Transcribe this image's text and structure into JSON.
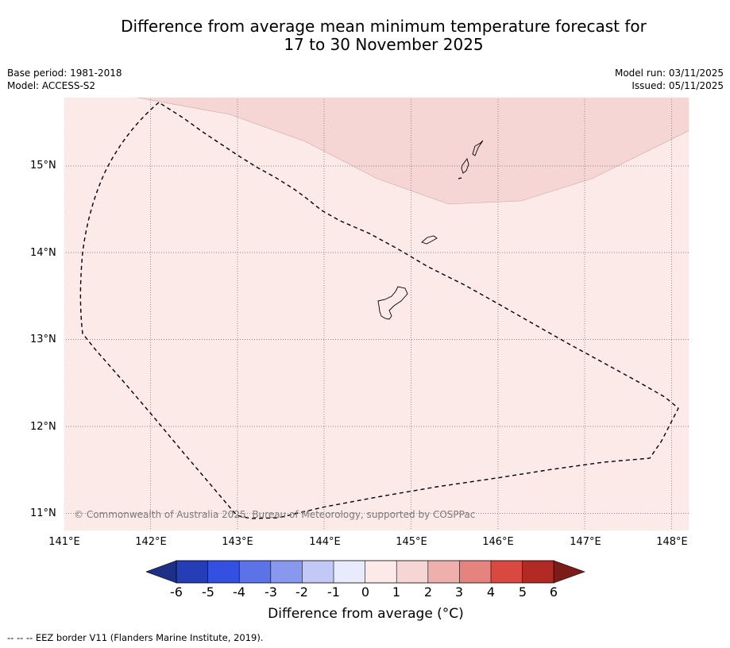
{
  "header": {
    "title_line1": "Difference from average mean minimum temperature forecast for",
    "title_line2": "17 to 30 November 2025",
    "base_period": "Base period: 1981-2018",
    "model": "Model: ACCESS-S2",
    "model_run": "Model run: 03/11/2025",
    "issued": "Issued: 05/11/2025"
  },
  "map": {
    "lat_labels": [
      "15°N",
      "14°N",
      "13°N",
      "12°N",
      "11°N"
    ],
    "lon_labels": [
      "141°E",
      "142°E",
      "143°E",
      "144°E",
      "145°E",
      "146°E",
      "147°E",
      "148°E"
    ],
    "copyright": "© Commonwealth of Australia 2025, Bureau of Meteorology, supported by COSPPac",
    "colors": {
      "category_0_to_1": "#fbeae8",
      "category_1_to_2": "#f6d6d4",
      "coastline": "#000000",
      "eez_border": "#000000"
    }
  },
  "colorbar": {
    "labels": [
      "-6",
      "-5",
      "-4",
      "-3",
      "-2",
      "-1",
      "0",
      "1",
      "2",
      "3",
      "4",
      "5",
      "6"
    ],
    "colors": [
      "#1e2f87",
      "#263db8",
      "#3350e0",
      "#5b73e6",
      "#8798ee",
      "#c2c9f5",
      "#e7ebfc",
      "#fbeae8",
      "#f6d6d4",
      "#eeb0ac",
      "#e5837e",
      "#d94841",
      "#b12a23",
      "#7b1c18"
    ],
    "title": "Difference from average (°C)"
  },
  "footnote": "--  --  -- EEZ border V11 (Flanders Marine Institute, 2019)."
}
